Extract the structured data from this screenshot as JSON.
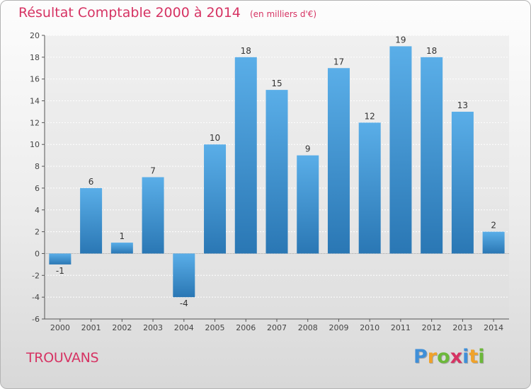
{
  "title": "Résultat Comptable 2000 à 2014",
  "unit": "(en milliers d'€)",
  "commune": "TROUVANS",
  "logo": {
    "text": "Proxiti",
    "letters": [
      {
        "ch": "P",
        "color": "#3f8fd8"
      },
      {
        "ch": "r",
        "color": "#f0a22a"
      },
      {
        "ch": "o",
        "color": "#6cb83a"
      },
      {
        "ch": "x",
        "color": "#d63363"
      },
      {
        "ch": "i",
        "color": "#3f8fd8"
      },
      {
        "ch": "t",
        "color": "#f0a22a"
      },
      {
        "ch": "i",
        "color": "#6cb83a"
      }
    ]
  },
  "colors": {
    "title": "#d63363",
    "bar_light": "#5aaee8",
    "bar_dark": "#2a77b4",
    "grid": "#ffffff",
    "axis": "#555555"
  },
  "chart_data": {
    "type": "bar",
    "title": "Résultat Comptable 2000 à 2014",
    "xlabel": "",
    "ylabel": "(en milliers d'€)",
    "ylim": [
      -6,
      20
    ],
    "ytick_step": 2,
    "grid": true,
    "categories": [
      "2000",
      "2001",
      "2002",
      "2003",
      "2004",
      "2005",
      "2006",
      "2007",
      "2008",
      "2009",
      "2010",
      "2011",
      "2012",
      "2013",
      "2014"
    ],
    "values": [
      -1,
      6,
      1,
      7,
      -4,
      10,
      18,
      15,
      9,
      17,
      12,
      19,
      18,
      13,
      2
    ]
  }
}
